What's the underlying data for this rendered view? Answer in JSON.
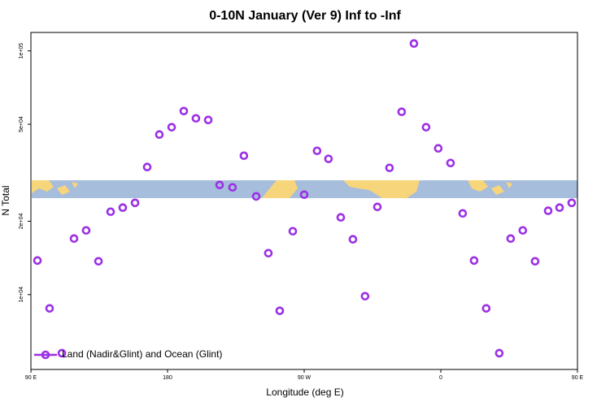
{
  "chart_data": {
    "type": "scatter",
    "title": "0-10N January (Ver 9)   Inf to -Inf",
    "x_label": "Longitude (deg E)",
    "y_label": "N Total",
    "log_y": true,
    "grid": false,
    "legend_position": "bottom-left",
    "xlim": [
      90,
      450
    ],
    "xticks": [
      {
        "value": 90,
        "label": "90 E"
      },
      {
        "value": 180,
        "label": "180"
      },
      {
        "value": 270,
        "label": "90 W"
      },
      {
        "value": 360,
        "label": "0"
      },
      {
        "value": 450,
        "label": "90 E"
      }
    ],
    "ylim": [
      4930,
      119000
    ],
    "yticks": [
      {
        "value": 10000,
        "label": "1e+04"
      },
      {
        "value": 20000,
        "label": "2e+04"
      },
      {
        "value": 50000,
        "label": "5e+04"
      },
      {
        "value": 100000,
        "label": "1e+05"
      }
    ],
    "series": [
      {
        "name": "Land (Nadir&Glint) and Ocean (Glint)",
        "color": "#9b30e6",
        "x": [
          94.3,
          102.3,
          110.4,
          118.4,
          126.4,
          134.5,
          142.5,
          150.5,
          158.6,
          166.6,
          174.6,
          182.7,
          190.7,
          198.7,
          206.8,
          214.3,
          222.8,
          230.3,
          238.4,
          246.4,
          253.9,
          262.5,
          270,
          278.5,
          286,
          294.1,
          302.1,
          310.1,
          318.2,
          326.2,
          334.2,
          342.3,
          350.3,
          358.3,
          366.4,
          374.4,
          381.9,
          389.9,
          398.5,
          406,
          414,
          422.1,
          430.7,
          438.2,
          446.2
        ],
        "values": [
          13800,
          8780,
          5750,
          16980,
          18340,
          13700,
          21880,
          22740,
          23800,
          33380,
          45370,
          48620,
          56640,
          52870,
          52080,
          28180,
          27540,
          37150,
          25300,
          14790,
          8580,
          18200,
          25700,
          38900,
          36060,
          20740,
          16860,
          9850,
          22900,
          33110,
          56230,
          107200,
          48620,
          39810,
          34670,
          21540,
          13800,
          8780,
          5750,
          16980,
          18340,
          13700,
          22080,
          22740,
          23800
        ]
      }
    ]
  }
}
